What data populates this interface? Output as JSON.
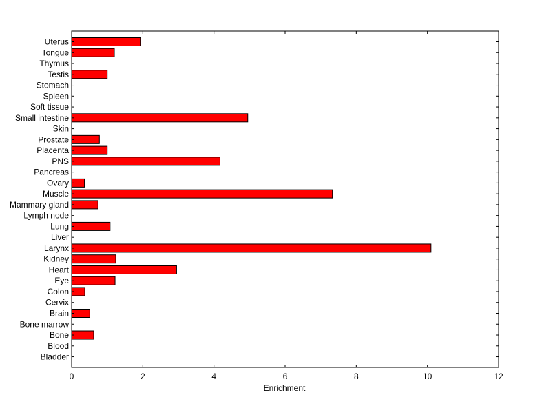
{
  "chart_data": {
    "type": "bar",
    "orientation": "horizontal",
    "title": "",
    "xlabel": "Enrichment",
    "ylabel": "",
    "xlim": [
      0,
      12
    ],
    "xticks": [
      0,
      2,
      4,
      6,
      8,
      10,
      12
    ],
    "grid": false,
    "bar_color": "#ff0000",
    "categories": [
      "Uterus",
      "Tongue",
      "Thymus",
      "Testis",
      "Stomach",
      "Spleen",
      "Soft tissue",
      "Small intestine",
      "Skin",
      "Prostate",
      "Placenta",
      "PNS",
      "Pancreas",
      "Ovary",
      "Muscle",
      "Mammary gland",
      "Lymph node",
      "Lung",
      "Liver",
      "Larynx",
      "Kidney",
      "Heart",
      "Eye",
      "Colon",
      "Cervix",
      "Brain",
      "Bone marrow",
      "Bone",
      "Blood",
      "Bladder"
    ],
    "values": [
      1.93,
      1.2,
      0,
      1.0,
      0,
      0,
      0,
      4.95,
      0,
      0.78,
      1.0,
      4.17,
      0,
      0.36,
      7.33,
      0.74,
      0,
      1.08,
      0,
      10.1,
      1.24,
      2.95,
      1.22,
      0.37,
      0,
      0.51,
      0,
      0.62,
      0,
      0
    ]
  }
}
